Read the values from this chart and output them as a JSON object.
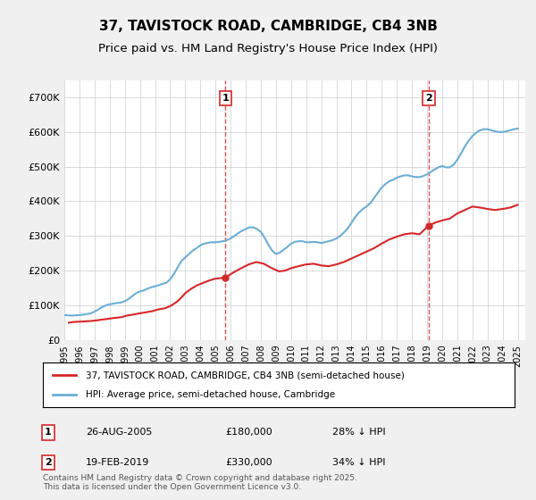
{
  "title": "37, TAVISTOCK ROAD, CAMBRIDGE, CB4 3NB",
  "subtitle": "Price paid vs. HM Land Registry's House Price Index (HPI)",
  "legend_line1": "37, TAVISTOCK ROAD, CAMBRIDGE, CB4 3NB (semi-detached house)",
  "legend_line2": "HPI: Average price, semi-detached house, Cambridge",
  "annotation1_label": "1",
  "annotation1_date": "26-AUG-2005",
  "annotation1_price": "£180,000",
  "annotation1_hpi": "28% ↓ HPI",
  "annotation1_year": 2005.65,
  "annotation1_value": 180000,
  "annotation2_label": "2",
  "annotation2_date": "19-FEB-2019",
  "annotation2_price": "£330,000",
  "annotation2_hpi": "34% ↓ HPI",
  "annotation2_year": 2019.12,
  "annotation2_value": 330000,
  "ylabel": "",
  "xlabel": "",
  "ylim_min": 0,
  "ylim_max": 750000,
  "ytick_values": [
    0,
    100000,
    200000,
    300000,
    400000,
    500000,
    600000,
    700000
  ],
  "ytick_labels": [
    "£0",
    "£100K",
    "£200K",
    "£300K",
    "£400K",
    "£500K",
    "£600K",
    "£700K"
  ],
  "background_color": "#f0f0f0",
  "plot_bg_color": "#ffffff",
  "hpi_color": "#6baed6",
  "price_color": "#d62728",
  "vline_color": "#d62728",
  "title_fontsize": 11,
  "subtitle_fontsize": 9.5,
  "footnote": "Contains HM Land Registry data © Crown copyright and database right 2025.\nThis data is licensed under the Open Government Licence v3.0.",
  "hpi_data": {
    "years": [
      1995.0,
      1995.25,
      1995.5,
      1995.75,
      1996.0,
      1996.25,
      1996.5,
      1996.75,
      1997.0,
      1997.25,
      1997.5,
      1997.75,
      1998.0,
      1998.25,
      1998.5,
      1998.75,
      1999.0,
      1999.25,
      1999.5,
      1999.75,
      2000.0,
      2000.25,
      2000.5,
      2000.75,
      2001.0,
      2001.25,
      2001.5,
      2001.75,
      2002.0,
      2002.25,
      2002.5,
      2002.75,
      2003.0,
      2003.25,
      2003.5,
      2003.75,
      2004.0,
      2004.25,
      2004.5,
      2004.75,
      2005.0,
      2005.25,
      2005.5,
      2005.75,
      2006.0,
      2006.25,
      2006.5,
      2006.75,
      2007.0,
      2007.25,
      2007.5,
      2007.75,
      2008.0,
      2008.25,
      2008.5,
      2008.75,
      2009.0,
      2009.25,
      2009.5,
      2009.75,
      2010.0,
      2010.25,
      2010.5,
      2010.75,
      2011.0,
      2011.25,
      2011.5,
      2011.75,
      2012.0,
      2012.25,
      2012.5,
      2012.75,
      2013.0,
      2013.25,
      2013.5,
      2013.75,
      2014.0,
      2014.25,
      2014.5,
      2014.75,
      2015.0,
      2015.25,
      2015.5,
      2015.75,
      2016.0,
      2016.25,
      2016.5,
      2016.75,
      2017.0,
      2017.25,
      2017.5,
      2017.75,
      2018.0,
      2018.25,
      2018.5,
      2018.75,
      2019.0,
      2019.25,
      2019.5,
      2019.75,
      2020.0,
      2020.25,
      2020.5,
      2020.75,
      2021.0,
      2021.25,
      2021.5,
      2021.75,
      2022.0,
      2022.25,
      2022.5,
      2022.75,
      2023.0,
      2023.25,
      2023.5,
      2023.75,
      2024.0,
      2024.25,
      2024.5,
      2024.75,
      2025.0
    ],
    "values": [
      72000,
      71000,
      70500,
      71000,
      72000,
      73000,
      75000,
      77000,
      82000,
      88000,
      95000,
      100000,
      103000,
      105000,
      107000,
      108000,
      112000,
      118000,
      127000,
      135000,
      140000,
      143000,
      148000,
      152000,
      155000,
      158000,
      162000,
      165000,
      175000,
      190000,
      210000,
      228000,
      238000,
      248000,
      258000,
      265000,
      273000,
      278000,
      280000,
      282000,
      282000,
      283000,
      285000,
      288000,
      293000,
      300000,
      308000,
      315000,
      320000,
      325000,
      325000,
      320000,
      312000,
      295000,
      275000,
      258000,
      248000,
      252000,
      260000,
      268000,
      278000,
      283000,
      285000,
      285000,
      282000,
      282000,
      283000,
      282000,
      280000,
      282000,
      285000,
      288000,
      293000,
      300000,
      310000,
      322000,
      338000,
      355000,
      368000,
      378000,
      385000,
      395000,
      410000,
      425000,
      440000,
      450000,
      458000,
      462000,
      468000,
      472000,
      475000,
      475000,
      472000,
      470000,
      470000,
      473000,
      478000,
      485000,
      492000,
      498000,
      502000,
      498000,
      498000,
      505000,
      520000,
      538000,
      558000,
      575000,
      588000,
      598000,
      605000,
      608000,
      608000,
      605000,
      602000,
      600000,
      600000,
      602000,
      605000,
      608000,
      610000
    ]
  },
  "price_data": {
    "years": [
      1995.3,
      1995.6,
      1996.1,
      1996.8,
      1997.2,
      1997.7,
      1998.2,
      1998.8,
      1999.1,
      1999.5,
      2000.0,
      2000.4,
      2000.8,
      2001.2,
      2001.7,
      2002.1,
      2002.5,
      2002.8,
      2003.0,
      2003.4,
      2003.8,
      2004.2,
      2004.6,
      2005.0,
      2005.65,
      2006.2,
      2006.7,
      2007.2,
      2007.7,
      2008.2,
      2008.7,
      2009.2,
      2009.6,
      2010.0,
      2010.5,
      2011.0,
      2011.5,
      2012.0,
      2012.5,
      2013.0,
      2013.5,
      2014.0,
      2014.5,
      2015.0,
      2015.5,
      2016.0,
      2016.5,
      2017.0,
      2017.5,
      2018.0,
      2018.5,
      2019.12,
      2019.5,
      2020.0,
      2020.5,
      2021.0,
      2021.5,
      2022.0,
      2022.5,
      2023.0,
      2023.5,
      2024.0,
      2024.5,
      2025.0
    ],
    "values": [
      50000,
      52000,
      53000,
      55000,
      57000,
      60000,
      63000,
      66000,
      70000,
      73000,
      77000,
      80000,
      83000,
      88000,
      92000,
      100000,
      112000,
      125000,
      135000,
      148000,
      158000,
      165000,
      172000,
      177000,
      180000,
      195000,
      207000,
      218000,
      225000,
      220000,
      208000,
      198000,
      200000,
      207000,
      213000,
      218000,
      220000,
      215000,
      213000,
      218000,
      225000,
      235000,
      245000,
      255000,
      265000,
      278000,
      290000,
      298000,
      305000,
      308000,
      305000,
      330000,
      338000,
      345000,
      350000,
      365000,
      375000,
      385000,
      382000,
      378000,
      375000,
      378000,
      382000,
      390000
    ]
  }
}
